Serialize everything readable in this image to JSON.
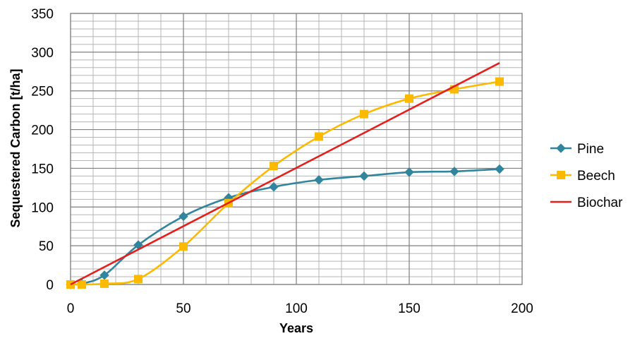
{
  "chart_data": {
    "type": "line",
    "title": "",
    "xlabel": "Years",
    "ylabel": "Sequestered Carbon [t/ha]",
    "xlim": [
      0,
      200
    ],
    "ylim": [
      0,
      350
    ],
    "x_ticks": [
      0,
      50,
      100,
      150,
      200
    ],
    "y_ticks": [
      0,
      50,
      100,
      150,
      200,
      250,
      300,
      350
    ],
    "x_tick_labels": [
      "0",
      "50",
      "100",
      "150",
      "200"
    ],
    "y_tick_labels": [
      "0",
      "50",
      "100",
      "150",
      "200",
      "250",
      "300",
      "350"
    ],
    "grid": true,
    "legend_position": "right",
    "series": [
      {
        "name": "Pine",
        "color": "#31859c",
        "marker": "diamond",
        "smooth": true,
        "x": [
          0,
          5,
          15,
          30,
          50,
          70,
          90,
          110,
          130,
          150,
          170,
          190
        ],
        "y": [
          0,
          1,
          12,
          51,
          88,
          112,
          126,
          135,
          140,
          145,
          146,
          149
        ]
      },
      {
        "name": "Beech",
        "color": "#fbba00",
        "marker": "square",
        "smooth": true,
        "x": [
          0,
          5,
          15,
          30,
          50,
          70,
          90,
          110,
          130,
          150,
          170,
          190
        ],
        "y": [
          0,
          0,
          1,
          7,
          49,
          105,
          153,
          191,
          220,
          240,
          252,
          262
        ]
      },
      {
        "name": "Biochar",
        "color": "#e2211c",
        "marker": "none",
        "smooth": false,
        "x": [
          0,
          190
        ],
        "y": [
          0,
          286
        ]
      }
    ]
  }
}
